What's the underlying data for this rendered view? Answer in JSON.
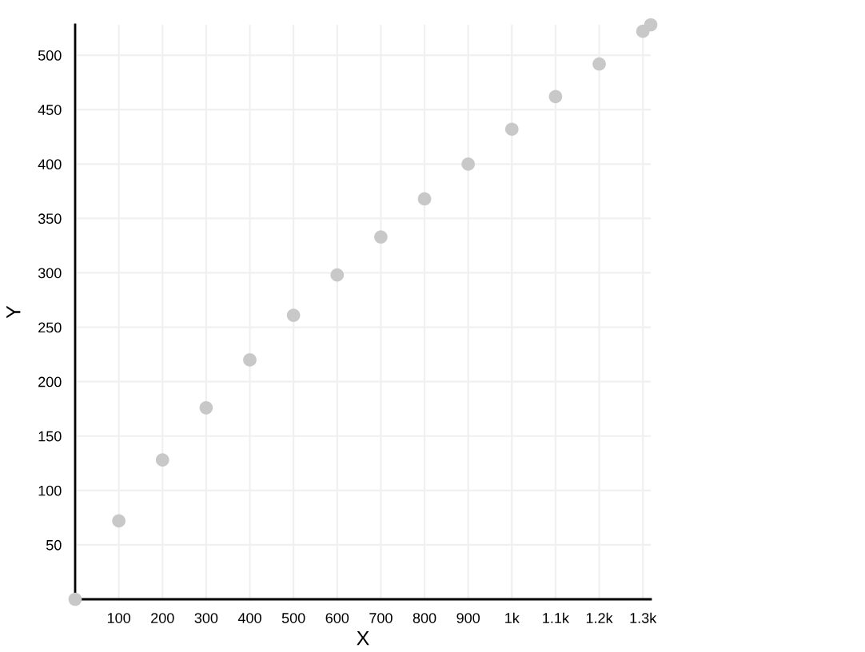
{
  "chart_data": {
    "type": "scatter",
    "xlabel": "X",
    "ylabel": "Y",
    "x": [
      0,
      100,
      200,
      300,
      400,
      500,
      600,
      700,
      800,
      900,
      1000,
      1100,
      1200,
      1300,
      1318
    ],
    "series": [
      {
        "color": "#c8c8c8",
        "values": [
          0,
          72,
          128,
          176,
          220,
          261,
          298,
          333,
          368,
          400,
          432,
          462,
          492,
          522,
          528
        ]
      }
    ],
    "xlim": [
      0,
      1318
    ],
    "ylim": [
      0,
      528
    ],
    "xticks": [
      {
        "value": 0,
        "label": null
      },
      100,
      200,
      300,
      400,
      500,
      600,
      700,
      800,
      900,
      {
        "value": 1000,
        "label": "1k"
      },
      {
        "value": 1100,
        "label": "1.1k"
      },
      {
        "value": 1200,
        "label": "1.2k"
      },
      {
        "value": 1300,
        "label": "1.3k"
      }
    ],
    "yticks": [
      {
        "value": 0,
        "label": null
      },
      50,
      100,
      150,
      200,
      250,
      300,
      350,
      400,
      450,
      500
    ],
    "grid": true,
    "marker": "circle"
  }
}
